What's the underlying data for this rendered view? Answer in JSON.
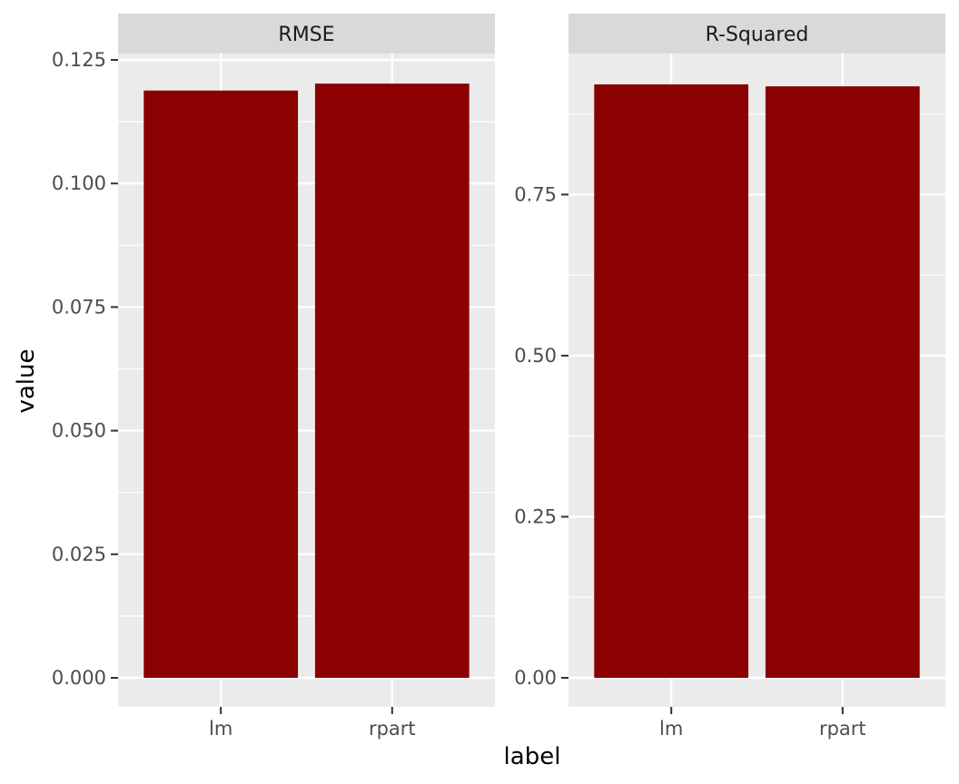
{
  "chart_data": {
    "type": "bar",
    "facet_layout": "1 row, 2 columns, independent y scales",
    "xlabel": "label",
    "ylabel": "value",
    "bar_color": "#8b0000",
    "panel_background": "#ebebeb",
    "strip_background": "#d9d9d9",
    "grid": true,
    "legend": "none",
    "categories": [
      "lm",
      "rpart"
    ],
    "panels": [
      {
        "strip": "RMSE",
        "categories": [
          "lm",
          "rpart"
        ],
        "values": [
          0.1188,
          0.1202
        ],
        "ylim": [
          0,
          0.125
        ],
        "yticks": [
          0,
          0.025,
          0.05,
          0.075,
          0.1,
          0.125
        ],
        "ytick_labels": [
          "0.000",
          "0.025",
          "0.050",
          "0.075",
          "0.100",
          "0.125"
        ]
      },
      {
        "strip": "R-Squared",
        "categories": [
          "lm",
          "rpart"
        ],
        "values": [
          0.921,
          0.918
        ],
        "ylim": [
          0,
          0.921
        ],
        "yticks": [
          0,
          0.25,
          0.5,
          0.75
        ],
        "ytick_labels": [
          "0.00",
          "0.25",
          "0.50",
          "0.75"
        ]
      }
    ]
  }
}
